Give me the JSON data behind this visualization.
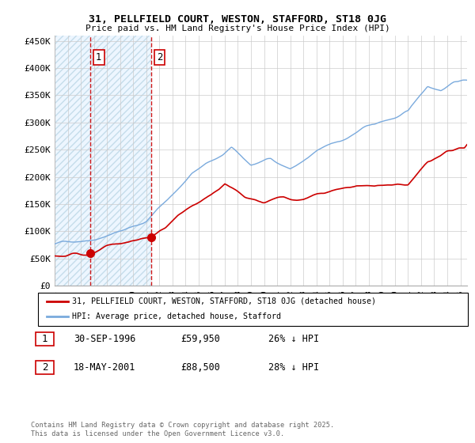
{
  "title1": "31, PELLFIELD COURT, WESTON, STAFFORD, ST18 0JG",
  "title2": "Price paid vs. HM Land Registry's House Price Index (HPI)",
  "ylabel_ticks": [
    "£0",
    "£50K",
    "£100K",
    "£150K",
    "£200K",
    "£250K",
    "£300K",
    "£350K",
    "£400K",
    "£450K"
  ],
  "ytick_values": [
    0,
    50000,
    100000,
    150000,
    200000,
    250000,
    300000,
    350000,
    400000,
    450000
  ],
  "ylim": [
    0,
    460000
  ],
  "xlim_start": 1994.0,
  "xlim_end": 2025.5,
  "purchase1_date": 1996.75,
  "purchase1_price": 59950,
  "purchase2_date": 2001.38,
  "purchase2_price": 88500,
  "legend_line1": "31, PELLFIELD COURT, WESTON, STAFFORD, ST18 0JG (detached house)",
  "legend_line2": "HPI: Average price, detached house, Stafford",
  "table_row1_num": "1",
  "table_row1_date": "30-SEP-1996",
  "table_row1_price": "£59,950",
  "table_row1_hpi": "26% ↓ HPI",
  "table_row2_num": "2",
  "table_row2_date": "18-MAY-2001",
  "table_row2_price": "£88,500",
  "table_row2_hpi": "28% ↓ HPI",
  "footer": "Contains HM Land Registry data © Crown copyright and database right 2025.\nThis data is licensed under the Open Government Licence v3.0.",
  "line_color_price": "#cc0000",
  "line_color_hpi": "#7aaadd",
  "grid_color": "#cccccc",
  "background_color": "#ffffff"
}
